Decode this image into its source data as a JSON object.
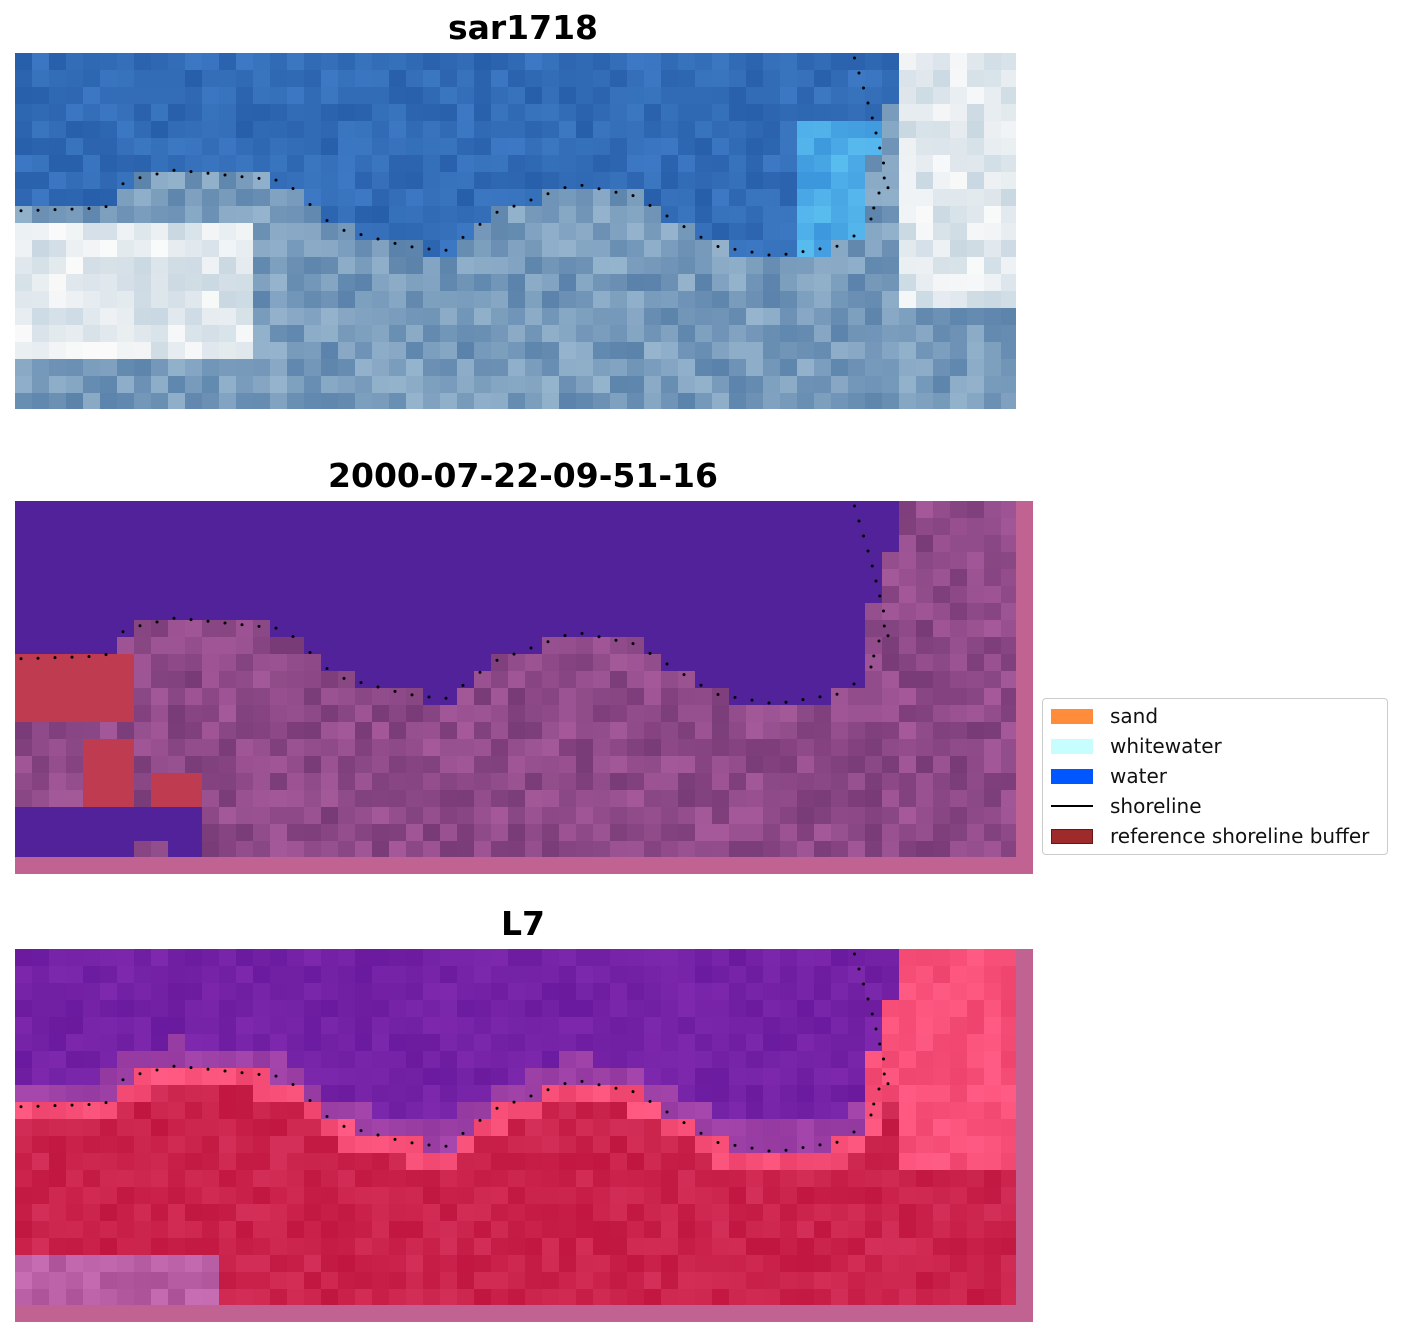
{
  "panels": [
    {
      "title": "sar1718",
      "theme": "rgb"
    },
    {
      "title": "2000-07-22-09-51-16",
      "theme": "classified"
    },
    {
      "title": "L7",
      "theme": "index"
    }
  ],
  "legend": {
    "items": [
      {
        "label": "sand",
        "color": "#ff8c3a",
        "kind": "patch"
      },
      {
        "label": "whitewater",
        "color": "#c8fdfd",
        "kind": "patch"
      },
      {
        "label": "water",
        "color": "#0057ff",
        "kind": "patch"
      },
      {
        "label": "shoreline",
        "color": "#000000",
        "kind": "line"
      },
      {
        "label": "reference shoreline buffer",
        "color": "#9e2b2b",
        "kind": "patch"
      }
    ]
  },
  "colors": {
    "water_class": "#52229a",
    "land_class": "#8c4a86",
    "buffer_class": "#bf3b4f",
    "index_water": "#6a1a9e",
    "index_land": "#c0163f",
    "frame_pink": "#c06393"
  }
}
